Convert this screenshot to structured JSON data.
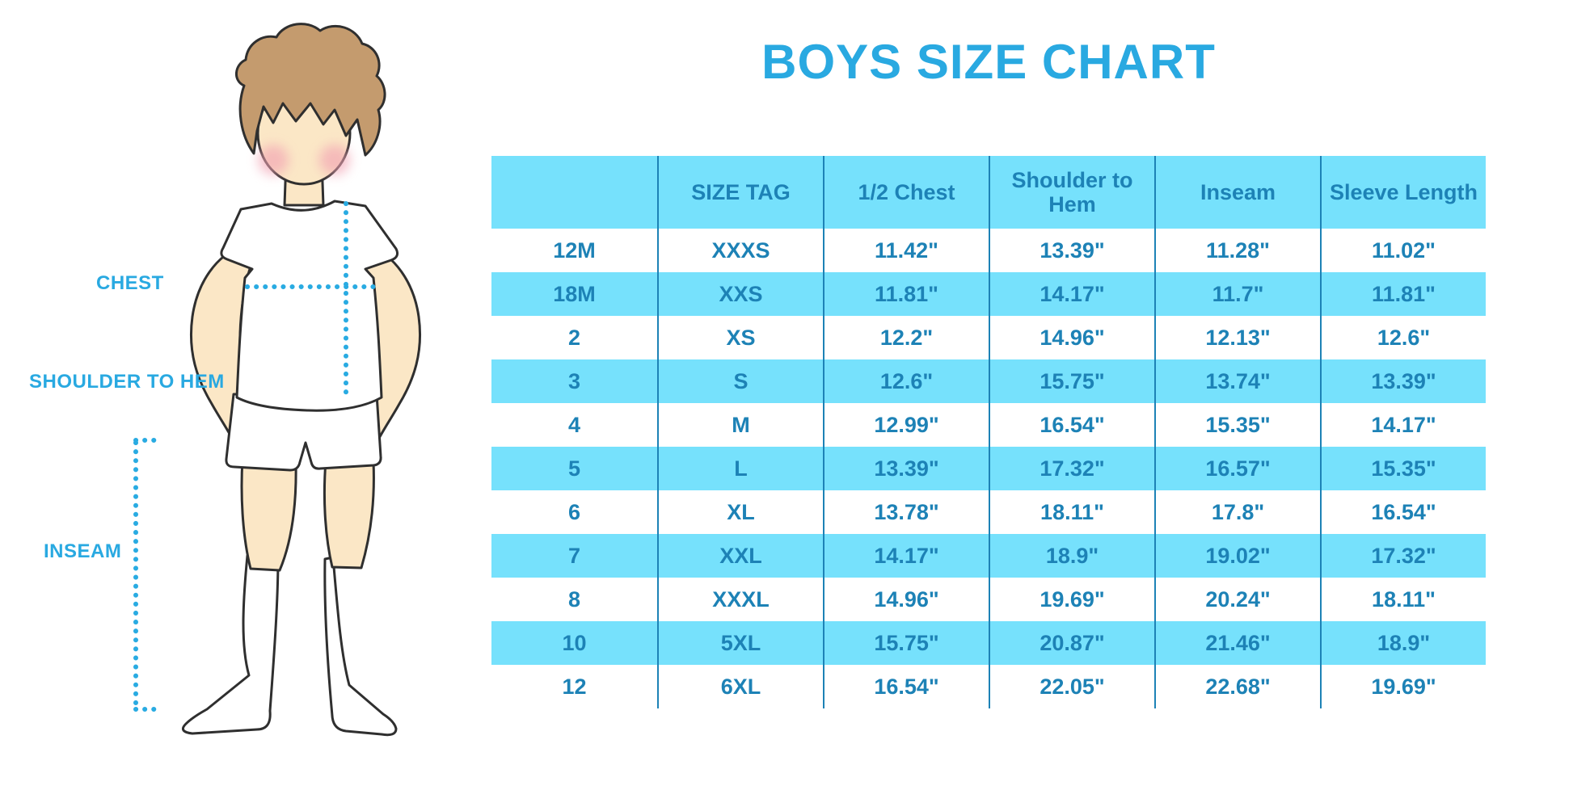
{
  "title": "BOYS SIZE CHART",
  "figure": {
    "chest_label": "CHEST",
    "shoulder_label": "SHOULDER TO HEM",
    "inseam_label": "INSEAM"
  },
  "colors": {
    "accent_blue": "#29A9E1",
    "table_text_blue": "#1D82B6",
    "stripe_blue": "#76E1FC",
    "dotted_line_blue": "#29ABE2",
    "skin": "#FBE7C6",
    "hair": "#C49B6E",
    "cheek": "#F2A3B3",
    "outline": "#2F2F2F"
  },
  "chart_data": {
    "type": "table",
    "title": "BOYS SIZE CHART",
    "columns": [
      "",
      "SIZE TAG",
      "1/2 Chest",
      "Shoulder to Hem",
      "Inseam",
      "Sleeve Length"
    ],
    "rows": [
      [
        "12M",
        "XXXS",
        "11.42\"",
        "13.39\"",
        "11.28\"",
        "11.02\""
      ],
      [
        "18M",
        "XXS",
        "11.81\"",
        "14.17\"",
        "11.7\"",
        "11.81\""
      ],
      [
        "2",
        "XS",
        "12.2\"",
        "14.96\"",
        "12.13\"",
        "12.6\""
      ],
      [
        "3",
        "S",
        "12.6\"",
        "15.75\"",
        "13.74\"",
        "13.39\""
      ],
      [
        "4",
        "M",
        "12.99\"",
        "16.54\"",
        "15.35\"",
        "14.17\""
      ],
      [
        "5",
        "L",
        "13.39\"",
        "17.32\"",
        "16.57\"",
        "15.35\""
      ],
      [
        "6",
        "XL",
        "13.78\"",
        "18.11\"",
        "17.8\"",
        "16.54\""
      ],
      [
        "7",
        "XXL",
        "14.17\"",
        "18.9\"",
        "19.02\"",
        "17.32\""
      ],
      [
        "8",
        "XXXL",
        "14.96\"",
        "19.69\"",
        "20.24\"",
        "18.11\""
      ],
      [
        "10",
        "5XL",
        "15.75\"",
        "20.87\"",
        "21.46\"",
        "18.9\""
      ],
      [
        "12",
        "6XL",
        "16.54\"",
        "22.05\"",
        "22.68\"",
        "19.69\""
      ]
    ],
    "row_stripe_pattern": "header blue, then alternating white/blue starting white",
    "grid": "vertical column separators only, no horizontal lines"
  }
}
